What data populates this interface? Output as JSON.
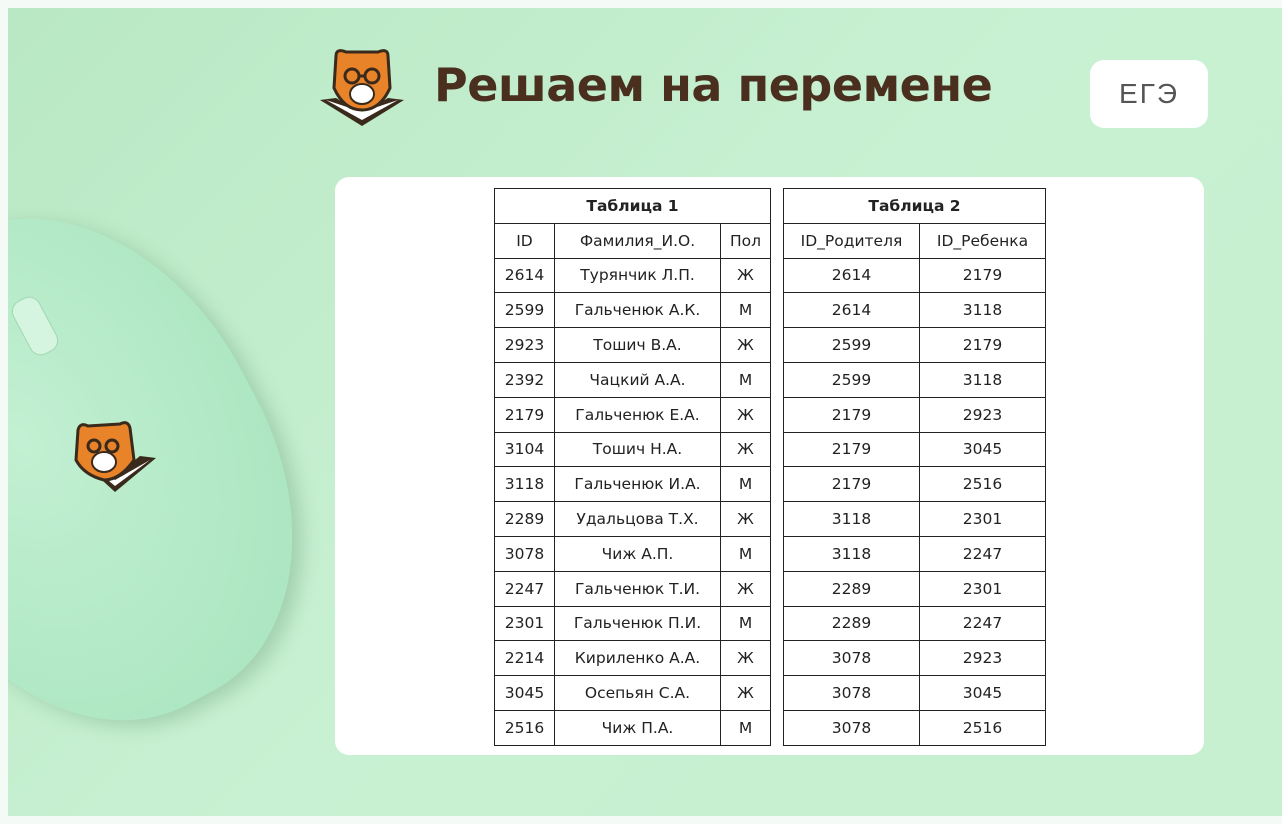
{
  "header": {
    "title": "Решаем на перемене",
    "exam_badge": "ЕГЭ"
  },
  "table1": {
    "title": "Таблица 1",
    "columns": [
      "ID",
      "Фамилия_И.О.",
      "Пол"
    ],
    "rows": [
      [
        "2614",
        "Турянчик Л.П.",
        "Ж"
      ],
      [
        "2599",
        "Гальченюк А.К.",
        "М"
      ],
      [
        "2923",
        "Тошич В.А.",
        "Ж"
      ],
      [
        "2392",
        "Чацкий А.А.",
        "М"
      ],
      [
        "2179",
        "Гальченюк Е.А.",
        "Ж"
      ],
      [
        "3104",
        "Тошич Н.А.",
        "Ж"
      ],
      [
        "3118",
        "Гальченюк И.А.",
        "М"
      ],
      [
        "2289",
        "Удальцова Т.Х.",
        "Ж"
      ],
      [
        "3078",
        "Чиж А.П.",
        "М"
      ],
      [
        "2247",
        "Гальченюк Т.И.",
        "Ж"
      ],
      [
        "2301",
        "Гальченюк П.И.",
        "М"
      ],
      [
        "2214",
        "Кириленко А.А.",
        "Ж"
      ],
      [
        "3045",
        "Осепьян С.А.",
        "Ж"
      ],
      [
        "2516",
        "Чиж П.А.",
        "М"
      ]
    ]
  },
  "table2": {
    "title": "Таблица 2",
    "columns": [
      "ID_Родителя",
      "ID_Ребенка"
    ],
    "rows": [
      [
        "2614",
        "2179"
      ],
      [
        "2614",
        "3118"
      ],
      [
        "2599",
        "2179"
      ],
      [
        "2599",
        "3118"
      ],
      [
        "2179",
        "2923"
      ],
      [
        "2179",
        "3045"
      ],
      [
        "2179",
        "2516"
      ],
      [
        "3118",
        "2301"
      ],
      [
        "3118",
        "2247"
      ],
      [
        "2289",
        "2301"
      ],
      [
        "2289",
        "2247"
      ],
      [
        "3078",
        "2923"
      ],
      [
        "3078",
        "3045"
      ],
      [
        "3078",
        "2516"
      ]
    ]
  }
}
